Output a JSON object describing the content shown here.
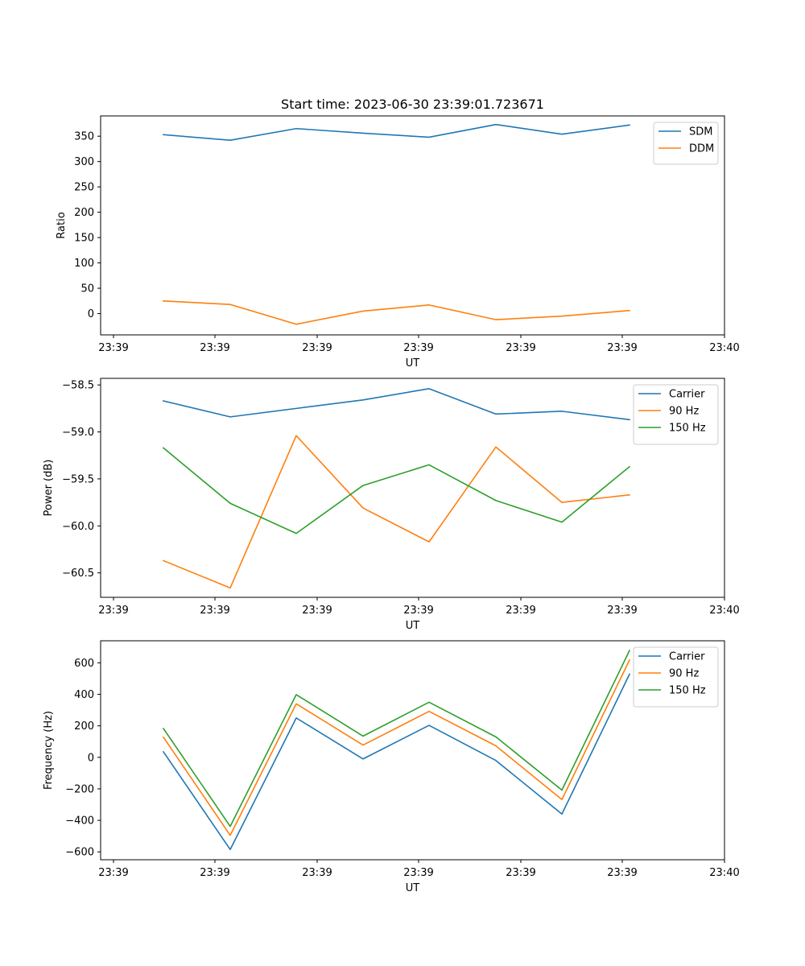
{
  "chart_data": [
    {
      "type": "line",
      "title": "Start time: 2023-06-30 23:39:01.723671",
      "xlabel": "UT",
      "ylabel": "Ratio",
      "x_tick_labels": [
        "23:39",
        "23:39",
        "23:39",
        "23:39",
        "23:39",
        "23:39",
        "23:39"
      ],
      "x_tick_last_label": "23:40",
      "ylim": [
        -42,
        390
      ],
      "yticks": [
        0,
        50,
        100,
        150,
        200,
        250,
        300,
        350
      ],
      "legend_position": "upper right",
      "series": [
        {
          "name": "SDM",
          "color": "#1f77b4",
          "values": [
            353,
            342,
            365,
            356,
            348,
            373,
            354,
            372
          ]
        },
        {
          "name": "DDM",
          "color": "#ff7f0e",
          "values": [
            25,
            18,
            -21,
            5,
            17,
            -12,
            -5,
            6
          ]
        }
      ]
    },
    {
      "type": "line",
      "title": "",
      "xlabel": "UT",
      "ylabel": "Power (dB)",
      "x_tick_labels": [
        "23:39",
        "23:39",
        "23:39",
        "23:39",
        "23:39",
        "23:39",
        "23:39"
      ],
      "x_tick_last_label": "23:40",
      "ylim": [
        -60.76,
        -58.43
      ],
      "yticks": [
        -60.5,
        -60.0,
        -59.5,
        -59.0,
        -58.5
      ],
      "legend_position": "upper right",
      "series": [
        {
          "name": "Carrier",
          "color": "#1f77b4",
          "values": [
            -58.67,
            -58.84,
            -58.75,
            -58.66,
            -58.54,
            -58.81,
            -58.78,
            -58.87
          ]
        },
        {
          "name": "90 Hz",
          "color": "#ff7f0e",
          "values": [
            -60.37,
            -60.66,
            -59.04,
            -59.81,
            -60.17,
            -59.16,
            -59.75,
            -59.67
          ]
        },
        {
          "name": "150 Hz",
          "color": "#2ca02c",
          "values": [
            -59.17,
            -59.76,
            -60.08,
            -59.57,
            -59.35,
            -59.73,
            -59.96,
            -59.37
          ]
        }
      ]
    },
    {
      "type": "line",
      "title": "",
      "xlabel": "UT",
      "ylabel": "Frequency (Hz)",
      "x_tick_labels": [
        "23:39",
        "23:39",
        "23:39",
        "23:39",
        "23:39",
        "23:39",
        "23:39"
      ],
      "x_tick_last_label": "23:40",
      "ylim": [
        -650,
        740
      ],
      "yticks": [
        -600,
        -400,
        -200,
        0,
        200,
        400,
        600
      ],
      "legend_position": "upper right",
      "series": [
        {
          "name": "Carrier",
          "color": "#1f77b4",
          "values": [
            35,
            -585,
            250,
            -10,
            203,
            -20,
            -360,
            528
          ]
        },
        {
          "name": "90 Hz",
          "color": "#ff7f0e",
          "values": [
            128,
            -495,
            340,
            78,
            292,
            73,
            -268,
            618
          ]
        },
        {
          "name": "150 Hz",
          "color": "#2ca02c",
          "values": [
            183,
            -438,
            398,
            135,
            350,
            130,
            -208,
            678
          ]
        }
      ]
    }
  ]
}
